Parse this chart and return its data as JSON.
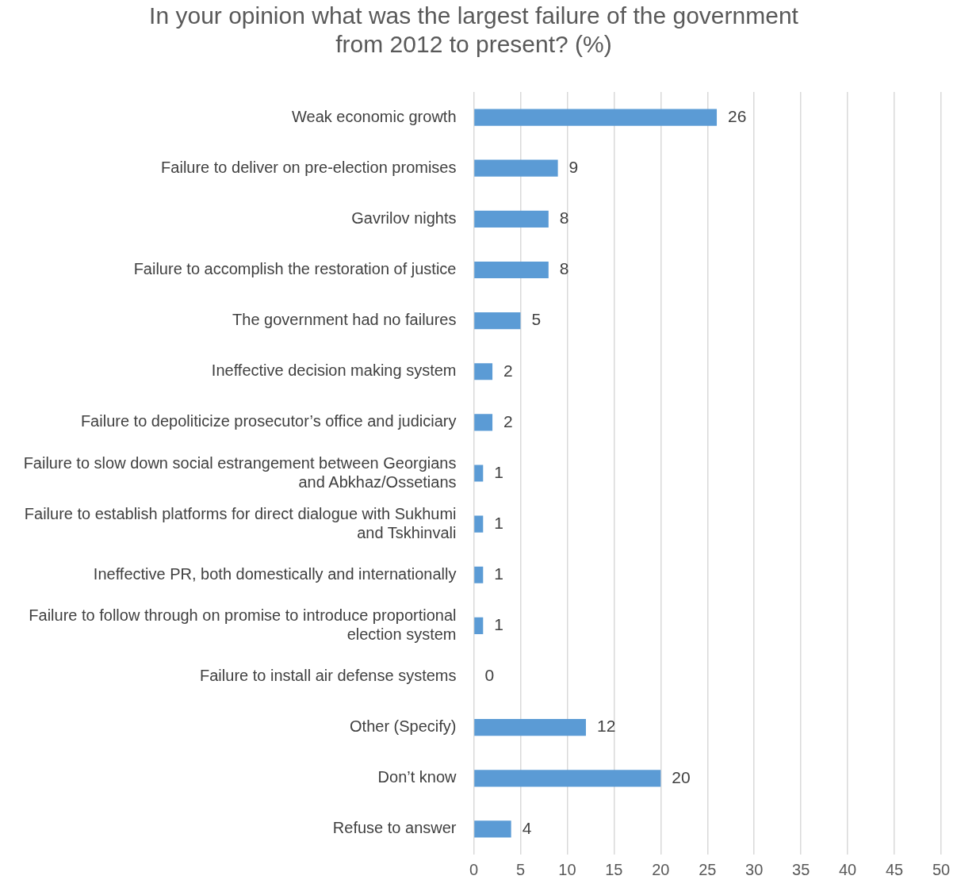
{
  "chart_data": {
    "type": "bar",
    "orientation": "horizontal",
    "title": "In your opinion what was the largest failure of the government from 2012 to present? (%)",
    "categories": [
      "Weak economic growth",
      "Failure to deliver on pre-election promises",
      "Gavrilov nights",
      "Failure to accomplish the restoration of justice",
      "The government had no failures",
      "Ineffective decision making system",
      "Failure to depoliticize prosecutor’s office and judiciary",
      "Failure to slow down social estrangement between Georgians and Abkhaz/Ossetians",
      "Failure to establish platforms for direct dialogue with Sukhumi and Tskhinvali",
      "Ineffective PR, both domestically and internationally",
      "Failure to follow through on promise to introduce proportional election system",
      "Failure to install air defense systems",
      "Other (Specify)",
      "Don’t know",
      "Refuse to answer"
    ],
    "values": [
      26,
      9,
      8,
      8,
      5,
      2,
      2,
      1,
      1,
      1,
      1,
      0,
      12,
      20,
      4
    ],
    "color": "#5b9bd5",
    "xlim": [
      0,
      50
    ],
    "xticks": [
      0,
      5,
      10,
      15,
      20,
      25,
      30,
      35,
      40,
      45,
      50
    ],
    "grid": "x",
    "data_labels": true
  }
}
